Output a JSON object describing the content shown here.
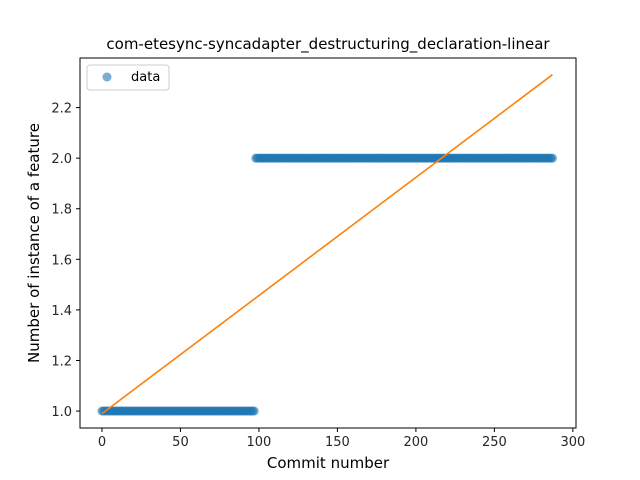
{
  "chart_data": {
    "type": "scatter",
    "title": "com-etesync-syncadapter_destructuring_declaration-linear",
    "xlabel": "Commit number",
    "ylabel": "Number of instance of a feature",
    "xlim": [
      -14,
      302
    ],
    "ylim": [
      0.933,
      2.396
    ],
    "xticks": [
      0,
      50,
      100,
      150,
      200,
      250,
      300
    ],
    "yticks": [
      1.0,
      1.2,
      1.4,
      1.6,
      1.8,
      2.0,
      2.2
    ],
    "ytick_labels": [
      "1.0",
      "1.2",
      "1.4",
      "1.6",
      "1.8",
      "2.0",
      "2.2"
    ],
    "legend": {
      "position": "upper-left",
      "entries": [
        "data"
      ]
    },
    "grid": false,
    "series": [
      {
        "name": "data",
        "kind": "scatter",
        "color": "#1f77b4",
        "segments": [
          {
            "x_start": 0,
            "x_end": 97,
            "y": 1
          },
          {
            "x_start": 98,
            "x_end": 287,
            "y": 2
          }
        ]
      },
      {
        "kind": "line",
        "color": "#ff7f0e",
        "x": [
          0,
          287
        ],
        "y": [
          0.99,
          2.33
        ]
      }
    ]
  }
}
